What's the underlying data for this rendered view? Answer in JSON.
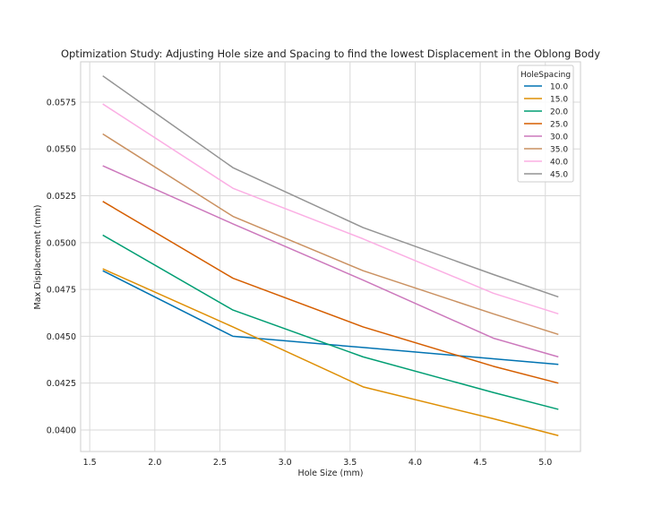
{
  "chart_data": {
    "type": "line",
    "title": "Optimization Study: Adjusting Hole size and Spacing to find the lowest Displacement in the Oblong Body",
    "xlabel": "Hole Size (mm)",
    "ylabel": "Max Displacement (mm)",
    "xlim": [
      1.43,
      5.27
    ],
    "ylim": [
      0.03885,
      0.05965
    ],
    "x_ticks": [
      1.5,
      2.0,
      2.5,
      3.0,
      3.5,
      4.0,
      4.5,
      5.0
    ],
    "y_ticks": [
      0.04,
      0.0425,
      0.045,
      0.0475,
      0.05,
      0.0525,
      0.055,
      0.0575
    ],
    "x_tick_labels": [
      "1.5",
      "2.0",
      "2.5",
      "3.0",
      "3.5",
      "4.0",
      "4.5",
      "5.0"
    ],
    "y_tick_labels": [
      "0.0400",
      "0.0425",
      "0.0450",
      "0.0475",
      "0.0500",
      "0.0525",
      "0.0550",
      "0.0575"
    ],
    "grid": true,
    "legend_title": "HoleSpacing",
    "legend_position": "top-right",
    "x": [
      1.6,
      2.6,
      3.6,
      4.6,
      5.1
    ],
    "series": [
      {
        "name": "10.0",
        "color": "#0173b2",
        "values": [
          0.0485,
          0.045,
          0.0444,
          0.0438,
          0.0435
        ]
      },
      {
        "name": "15.0",
        "color": "#de8f05",
        "values": [
          0.0486,
          0.0455,
          0.0423,
          0.0406,
          0.0397
        ]
      },
      {
        "name": "20.0",
        "color": "#029e73",
        "values": [
          0.0504,
          0.0464,
          0.0439,
          0.042,
          0.0411
        ]
      },
      {
        "name": "25.0",
        "color": "#d55e00",
        "values": [
          0.0522,
          0.0481,
          0.0455,
          0.0434,
          0.0425
        ]
      },
      {
        "name": "30.0",
        "color": "#cc78bc",
        "values": [
          0.0541,
          0.051,
          0.048,
          0.0449,
          0.0439
        ]
      },
      {
        "name": "35.0",
        "color": "#ca9161",
        "values": [
          0.0558,
          0.0514,
          0.0485,
          0.0462,
          0.0451
        ]
      },
      {
        "name": "40.0",
        "color": "#fbafe4",
        "values": [
          0.0574,
          0.0529,
          0.0502,
          0.0473,
          0.0462
        ]
      },
      {
        "name": "45.0",
        "color": "#949494",
        "values": [
          0.0589,
          0.054,
          0.0508,
          0.0483,
          0.0471
        ]
      }
    ]
  }
}
